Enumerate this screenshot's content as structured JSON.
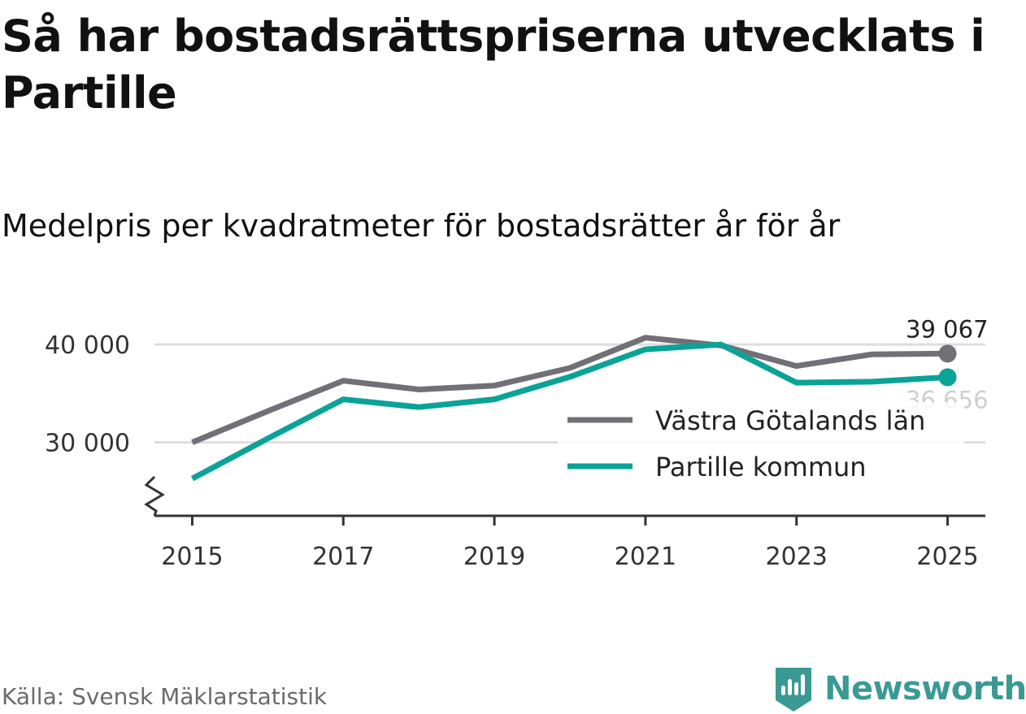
{
  "title": "Så har bostadsrättspriserna utvecklats i Partille",
  "subtitle": "Medelpris per kvadratmeter för bostadsrätter år för år",
  "source": "Källa: Svensk Mäklarstatistik",
  "brand": "Newsworthy",
  "colors": {
    "regional": "#727076",
    "local": "#0aa397",
    "grid": "#dedede",
    "axis": "#333333",
    "brand": "#3a9a93"
  },
  "chart_data": {
    "type": "line",
    "title": "Medelpris per kvadratmeter för bostadsrätter år för år",
    "xlabel": "",
    "ylabel": "",
    "x": [
      2015,
      2016,
      2017,
      2018,
      2019,
      2020,
      2021,
      2022,
      2023,
      2024,
      2025
    ],
    "xticks": [
      2015,
      2017,
      2019,
      2021,
      2023,
      2025
    ],
    "xtick_labels": [
      "2015",
      "2017",
      "2019",
      "2021",
      "2023",
      "2025"
    ],
    "yticks": [
      30000,
      40000
    ],
    "ytick_labels": [
      "30 000",
      "40 000"
    ],
    "ylim": [
      22500,
      42000
    ],
    "xlim": [
      2014.5,
      2025.5
    ],
    "axis_break": true,
    "grid": true,
    "legend_position": "inside-right",
    "series": [
      {
        "name": "Västra Götalands län",
        "color_key": "regional",
        "values": [
          30000,
          33200,
          36300,
          35400,
          35800,
          37600,
          40700,
          39900,
          37800,
          39000,
          39067
        ],
        "end_label": "39 067"
      },
      {
        "name": "Partille kommun",
        "color_key": "local",
        "values": [
          26300,
          30400,
          34400,
          33600,
          34400,
          36700,
          39500,
          40000,
          36100,
          36200,
          36656
        ],
        "end_label": "36 656"
      }
    ]
  }
}
